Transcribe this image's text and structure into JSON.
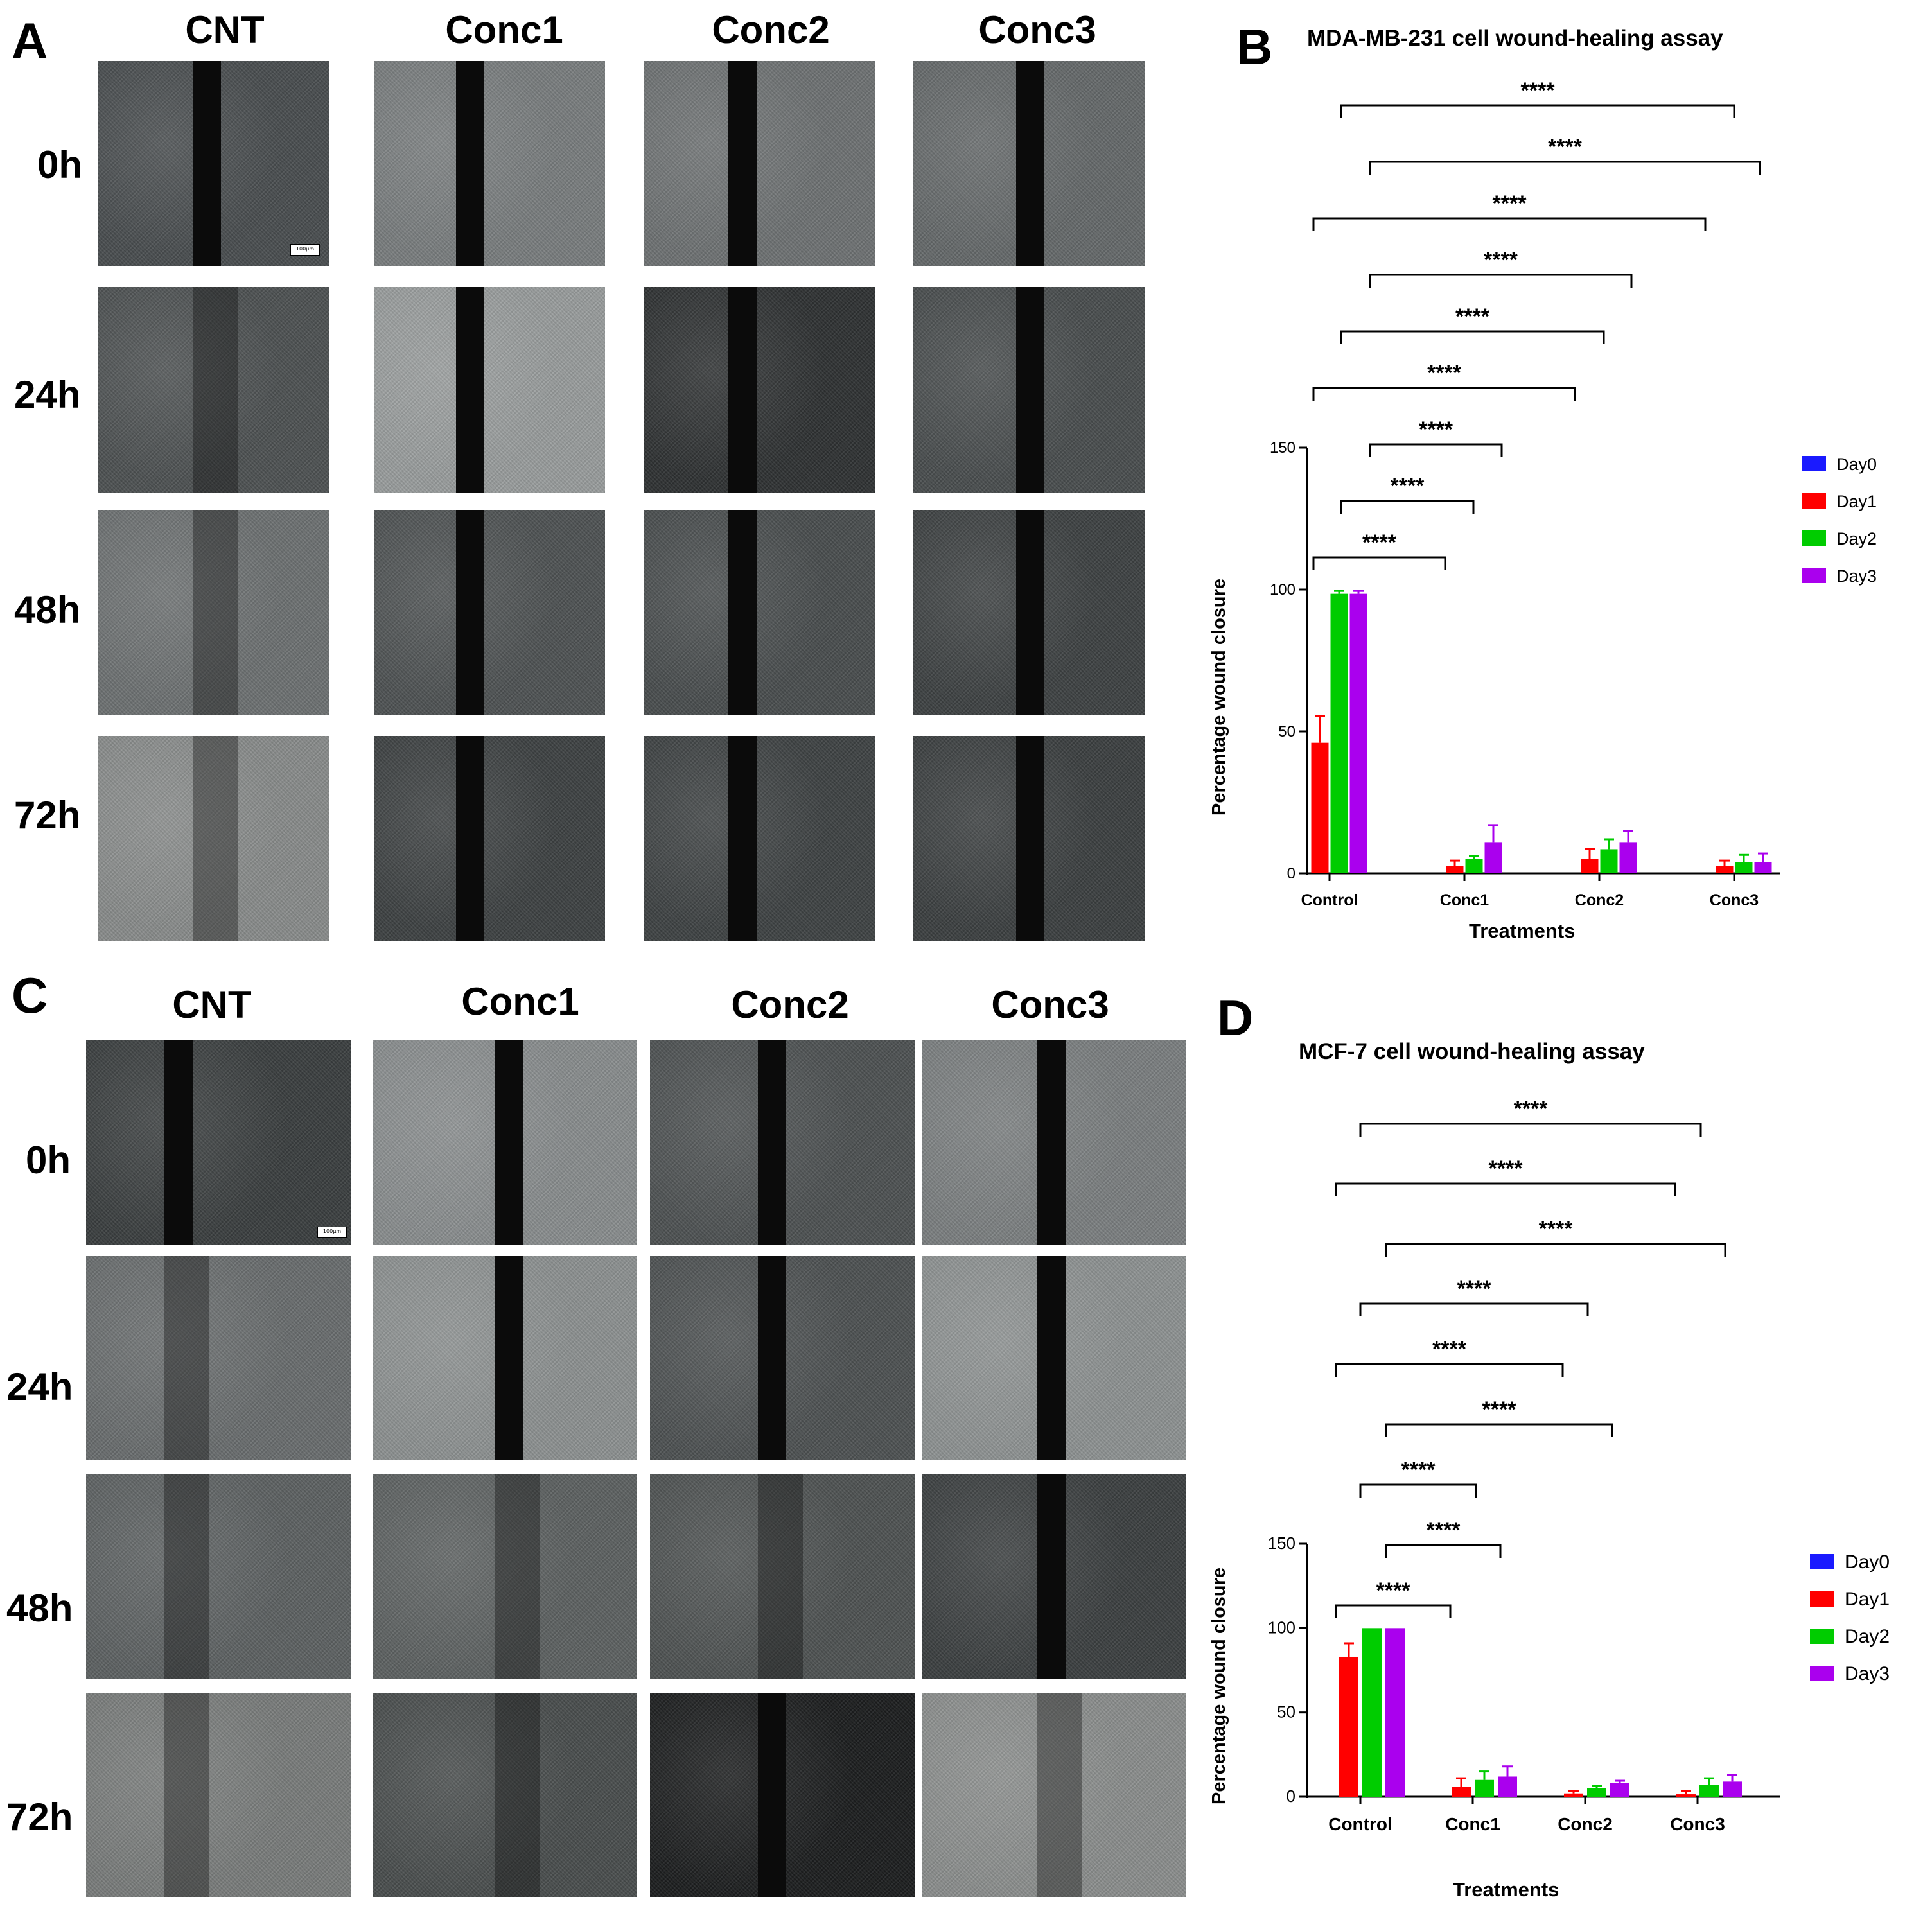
{
  "panels": {
    "A": {
      "letter": "A",
      "columns": [
        "CNT",
        "Conc1",
        "Conc2",
        "Conc3"
      ],
      "rows": [
        "0h",
        "24h",
        "48h",
        "72h"
      ],
      "scale_bar_text": "100µm"
    },
    "C": {
      "letter": "C",
      "columns": [
        "CNT",
        "Conc1",
        "Conc2",
        "Conc3"
      ],
      "rows": [
        "0h",
        "24h",
        "48h",
        "72h"
      ],
      "scale_bar_text": "100µm"
    }
  },
  "colors": {
    "Day0": "#1a1aff",
    "Day1": "#ff0000",
    "Day2": "#00cc00",
    "Day3": "#aa00ee"
  },
  "chart_data": [
    {
      "letter": "B",
      "type": "bar",
      "title": "MDA-MB-231 cell wound-healing assay",
      "xlabel": "Treatments",
      "ylabel": "Percentage wound closure",
      "ylim": [
        0,
        150
      ],
      "yticks": [
        0,
        50,
        100,
        150
      ],
      "categories": [
        "Control",
        "Conc1",
        "Conc2",
        "Conc3"
      ],
      "series": [
        {
          "name": "Day0",
          "values": [
            0,
            0,
            0,
            0
          ],
          "errors": [
            0,
            0,
            0,
            0
          ]
        },
        {
          "name": "Day1",
          "values": [
            46,
            2.5,
            5,
            2.5
          ],
          "errors": [
            9.5,
            2,
            3.5,
            2
          ]
        },
        {
          "name": "Day2",
          "values": [
            98.5,
            5,
            8.5,
            4
          ],
          "errors": [
            1,
            1,
            3.5,
            2.5
          ]
        },
        {
          "name": "Day3",
          "values": [
            98.5,
            11,
            11,
            4
          ],
          "errors": [
            1,
            6,
            4,
            3
          ]
        }
      ],
      "comparisons": [
        {
          "from": "Control",
          "to": "Conc3",
          "label": "****"
        },
        {
          "from": "Control",
          "to": "Conc3",
          "label": "****"
        },
        {
          "from": "Control",
          "to": "Conc3",
          "label": "****"
        },
        {
          "from": "Control",
          "to": "Conc2",
          "label": "****"
        },
        {
          "from": "Control",
          "to": "Conc2",
          "label": "****"
        },
        {
          "from": "Control",
          "to": "Conc2",
          "label": "****"
        },
        {
          "from": "Control",
          "to": "Conc1",
          "label": "****"
        },
        {
          "from": "Control",
          "to": "Conc1",
          "label": "****"
        },
        {
          "from": "Control",
          "to": "Conc1",
          "label": "****"
        }
      ],
      "legend_position": "right"
    },
    {
      "letter": "D",
      "type": "bar",
      "title": "MCF-7 cell wound-healing assay",
      "xlabel": "Treatments",
      "ylabel": "Percentage wound closure",
      "ylim": [
        0,
        150
      ],
      "yticks": [
        0,
        50,
        100,
        150
      ],
      "categories": [
        "Control",
        "Conc1",
        "Conc2",
        "Conc3"
      ],
      "series": [
        {
          "name": "Day0",
          "values": [
            0,
            0,
            0,
            0
          ],
          "errors": [
            0,
            0,
            0,
            0
          ]
        },
        {
          "name": "Day1",
          "values": [
            83,
            6,
            2,
            1.5
          ],
          "errors": [
            8,
            5,
            1.5,
            2
          ]
        },
        {
          "name": "Day2",
          "values": [
            100,
            10,
            5,
            7
          ],
          "errors": [
            0,
            5,
            1.5,
            4
          ]
        },
        {
          "name": "Day3",
          "values": [
            100,
            12,
            8,
            9
          ],
          "errors": [
            0,
            6,
            1.5,
            4
          ]
        }
      ],
      "comparisons": [
        {
          "from": "Control",
          "to": "Conc3",
          "label": "****"
        },
        {
          "from": "Control",
          "to": "Conc3",
          "label": "****"
        },
        {
          "from": "Control",
          "to": "Conc3",
          "label": "****"
        },
        {
          "from": "Control",
          "to": "Conc2",
          "label": "****"
        },
        {
          "from": "Control",
          "to": "Conc2",
          "label": "****"
        },
        {
          "from": "Control",
          "to": "Conc2",
          "label": "****"
        },
        {
          "from": "Control",
          "to": "Conc1",
          "label": "****"
        },
        {
          "from": "Control",
          "to": "Conc1",
          "label": "****"
        },
        {
          "from": "Control",
          "to": "Conc1",
          "label": "****"
        }
      ],
      "legend_position": "right"
    }
  ]
}
